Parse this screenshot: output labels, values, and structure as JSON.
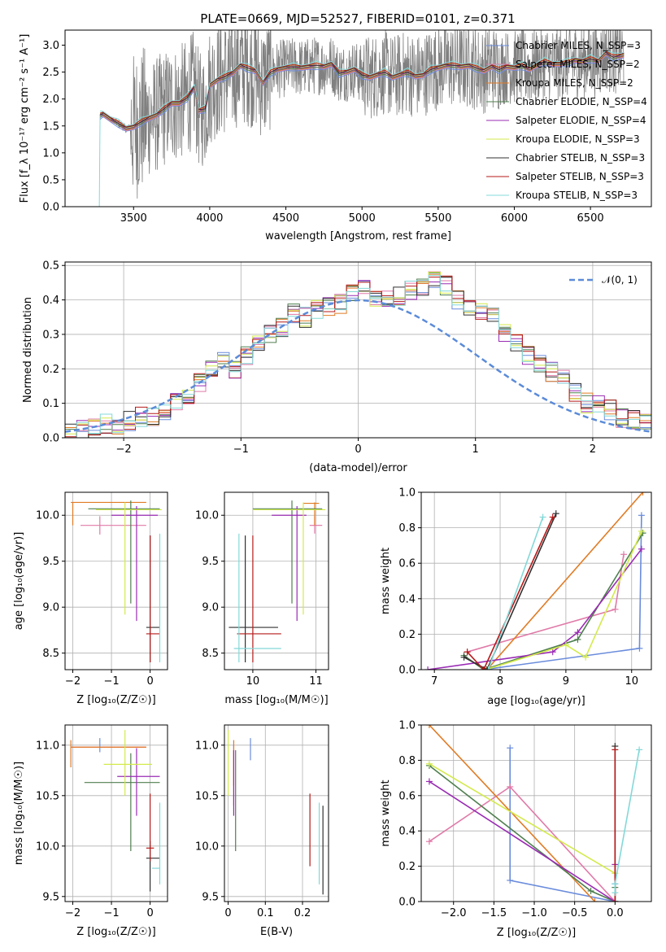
{
  "colors": {
    "chabrier_miles": "#6a8cdc",
    "salpeter_miles": "#e07aa8",
    "kroupa_miles": "#e07b24",
    "chabrier_elodie": "#4f7f4f",
    "salpeter_elodie": "#9a2bb4",
    "kroupa_elodie": "#d4ea4c",
    "chabrier_stelib": "#303030",
    "salpeter_stelib": "#b51a1a",
    "kroupa_stelib": "#84d8d8",
    "data": "#808080",
    "gauss": "#5b8bd8"
  },
  "chart_data": [
    {
      "id": "spectrum",
      "type": "line",
      "title": "PLATE=0669, MJD=52527, FIBERID=0101, z=0.371",
      "xlabel": "wavelength [Angstrom, rest frame]",
      "ylabel": "Flux [f_λ 10⁻¹⁷ erg cm⁻² s⁻¹ A⁻¹]",
      "xlim": [
        3050,
        6900
      ],
      "ylim": [
        0,
        3.28
      ],
      "xticks": [
        3500,
        4000,
        4500,
        5000,
        5500,
        6000,
        6500
      ],
      "yticks": [
        0.0,
        0.5,
        1.0,
        1.5,
        2.0,
        2.5,
        3.0
      ],
      "legend_position": "top-right",
      "model_points": {
        "x": [
          3280,
          3300,
          3350,
          3400,
          3450,
          3500,
          3550,
          3600,
          3650,
          3700,
          3750,
          3800,
          3850,
          3900,
          3930,
          3970,
          4000,
          4050,
          4100,
          4150,
          4200,
          4250,
          4300,
          4350,
          4400,
          4450,
          4500,
          4550,
          4600,
          4650,
          4700,
          4750,
          4800,
          4850,
          4900,
          4950,
          5000,
          5050,
          5100,
          5150,
          5200,
          5250,
          5300,
          5350,
          5400,
          5450,
          5500,
          5550,
          5600,
          5650,
          5700,
          5750,
          5800,
          5850,
          5900,
          5950,
          6000,
          6050,
          6100,
          6150,
          6200,
          6250,
          6300,
          6350,
          6400,
          6450,
          6500,
          6550,
          6600,
          6650,
          6700,
          6720
        ],
        "y": [
          1.7,
          1.72,
          1.62,
          1.55,
          1.45,
          1.48,
          1.58,
          1.64,
          1.7,
          1.82,
          1.92,
          1.92,
          2.02,
          2.22,
          1.78,
          1.82,
          2.25,
          2.35,
          2.42,
          2.48,
          2.62,
          2.58,
          2.52,
          2.3,
          2.5,
          2.55,
          2.58,
          2.6,
          2.58,
          2.6,
          2.63,
          2.6,
          2.65,
          2.48,
          2.5,
          2.55,
          2.45,
          2.4,
          2.45,
          2.5,
          2.4,
          2.45,
          2.5,
          2.42,
          2.44,
          2.55,
          2.58,
          2.62,
          2.63,
          2.6,
          2.62,
          2.58,
          2.52,
          2.6,
          2.55,
          2.6,
          2.58,
          2.62,
          2.55,
          2.63,
          2.7,
          2.65,
          2.65,
          2.68,
          2.72,
          2.7,
          2.75,
          2.7,
          2.85,
          2.78,
          2.8,
          2.82
        ]
      },
      "series": [
        {
          "name": "Chabrier MILES, N_SSP=3",
          "color": "#6a8cdc"
        },
        {
          "name": "Salpeter MILES, N_SSP=2",
          "color": "#e07aa8"
        },
        {
          "name": "Kroupa MILES, N_SSP=2",
          "color": "#e07b24"
        },
        {
          "name": "Chabrier ELODIE, N_SSP=4",
          "color": "#4f7f4f"
        },
        {
          "name": "Salpeter ELODIE, N_SSP=4",
          "color": "#9a2bb4"
        },
        {
          "name": "Kroupa ELODIE, N_SSP=3",
          "color": "#d4ea4c"
        },
        {
          "name": "Chabrier STELIB, N_SSP=3",
          "color": "#303030"
        },
        {
          "name": "Salpeter STELIB, N_SSP=3",
          "color": "#b51a1a"
        },
        {
          "name": "Kroupa STELIB, N_SSP=3",
          "color": "#84d8d8"
        }
      ]
    },
    {
      "id": "residuals",
      "type": "line",
      "xlabel": "(data-model)/error",
      "ylabel": "Normed distribution",
      "xlim": [
        -2.5,
        2.5
      ],
      "ylim": [
        0,
        0.51
      ],
      "xticks": [
        -2,
        -1,
        0,
        1,
        2
      ],
      "yticks": [
        0.0,
        0.1,
        0.2,
        0.3,
        0.4,
        0.5
      ],
      "legend": "𝒩(0, 1)",
      "legend_position": "top-right",
      "hist_bin_width": 0.1,
      "hist_bin_start": -2.5,
      "hist_base": [
        0.015,
        0.02,
        0.03,
        0.04,
        0.04,
        0.05,
        0.06,
        0.06,
        0.08,
        0.1,
        0.12,
        0.16,
        0.2,
        0.22,
        0.2,
        0.24,
        0.28,
        0.3,
        0.32,
        0.36,
        0.35,
        0.37,
        0.38,
        0.39,
        0.42,
        0.43,
        0.41,
        0.41,
        0.41,
        0.43,
        0.44,
        0.46,
        0.44,
        0.4,
        0.38,
        0.36,
        0.35,
        0.3,
        0.27,
        0.24,
        0.22,
        0.19,
        0.17,
        0.13,
        0.1,
        0.1,
        0.08,
        0.06,
        0.05,
        0.04,
        0.03
      ]
    },
    {
      "id": "age-vs-Z",
      "type": "scatter",
      "xlabel": "Z [log₁₀(Z/Z☉)]",
      "ylabel": "age [log₁₀(age/yr)]",
      "xlim": [
        -2.2,
        0.45
      ],
      "ylim": [
        8.32,
        10.25
      ],
      "xticks": [
        -2,
        -1,
        0
      ],
      "yticks": [
        8.5,
        9.0,
        9.5,
        10.0
      ],
      "errorbars": [
        {
          "color": "#6a8cdc",
          "x": -1.3,
          "y": 10.14,
          "xlo": -1.3,
          "xhi": -1.3,
          "ylo": 10.14,
          "yhi": 10.14
        },
        {
          "color": "#e07aa8",
          "x": -1.3,
          "y": 9.89,
          "xlo": -1.8,
          "xhi": -0.1,
          "ylo": 9.79,
          "yhi": 9.99
        },
        {
          "color": "#e07b24",
          "x": -2.0,
          "y": 10.14,
          "xlo": -2.05,
          "xhi": -0.1,
          "ylo": 9.89,
          "yhi": 10.14
        },
        {
          "color": "#4f7f4f",
          "x": -0.5,
          "y": 10.07,
          "xlo": -1.6,
          "xhi": 0.25,
          "ylo": 9.04,
          "yhi": 10.16
        },
        {
          "color": "#9a2bb4",
          "x": -0.35,
          "y": 10.0,
          "xlo": -1.0,
          "xhi": 0.2,
          "ylo": 8.85,
          "yhi": 10.1
        },
        {
          "color": "#d4ea4c",
          "x": -0.65,
          "y": 10.06,
          "xlo": -1.4,
          "xhi": 0.3,
          "ylo": 8.92,
          "yhi": 10.14
        },
        {
          "color": "#303030",
          "x": 0.0,
          "y": 8.78,
          "xlo": -0.1,
          "xhi": 0.25,
          "ylo": 8.4,
          "yhi": 9.78
        },
        {
          "color": "#b51a1a",
          "x": 0.0,
          "y": 8.71,
          "xlo": -0.1,
          "xhi": 0.25,
          "ylo": 8.4,
          "yhi": 9.78
        },
        {
          "color": "#84d8d8",
          "x": 0.25,
          "y": 8.55,
          "xlo": 0.25,
          "xhi": 0.25,
          "ylo": 8.4,
          "yhi": 9.8
        }
      ]
    },
    {
      "id": "age-vs-mass",
      "type": "scatter",
      "xlabel": "mass [log₁₀(M/M☉)]",
      "yticks": [
        8.5,
        9.0,
        9.5,
        10.0
      ],
      "xlim": [
        9.55,
        11.2
      ],
      "ylim": [
        8.32,
        10.25
      ],
      "xticks": [
        10,
        11
      ],
      "errorbars": [
        {
          "color": "#6a8cdc",
          "x": 11.0,
          "y": 10.13,
          "xlo": 11.0,
          "xhi": 11.0,
          "ylo": 10.13,
          "yhi": 10.13
        },
        {
          "color": "#e07aa8",
          "x": 10.98,
          "y": 9.89,
          "xlo": 10.9,
          "xhi": 11.1,
          "ylo": 9.8,
          "yhi": 9.99
        },
        {
          "color": "#e07b24",
          "x": 10.98,
          "y": 10.13,
          "xlo": 10.8,
          "xhi": 11.05,
          "ylo": 9.89,
          "yhi": 10.14
        },
        {
          "color": "#4f7f4f",
          "x": 10.62,
          "y": 10.07,
          "xlo": 10.0,
          "xhi": 11.1,
          "ylo": 9.04,
          "yhi": 10.16
        },
        {
          "color": "#9a2bb4",
          "x": 10.7,
          "y": 10.0,
          "xlo": 10.3,
          "xhi": 10.85,
          "ylo": 8.85,
          "yhi": 10.1
        },
        {
          "color": "#d4ea4c",
          "x": 10.8,
          "y": 10.06,
          "xlo": 10.0,
          "xhi": 11.15,
          "ylo": 8.92,
          "yhi": 10.14
        },
        {
          "color": "#303030",
          "x": 9.88,
          "y": 8.78,
          "xlo": 9.62,
          "xhi": 10.4,
          "ylo": 8.4,
          "yhi": 9.78
        },
        {
          "color": "#b51a1a",
          "x": 10.0,
          "y": 8.71,
          "xlo": 9.75,
          "xhi": 10.45,
          "ylo": 8.4,
          "yhi": 9.78
        },
        {
          "color": "#84d8d8",
          "x": 9.78,
          "y": 8.55,
          "xlo": 9.7,
          "xhi": 10.45,
          "ylo": 8.4,
          "yhi": 9.8
        }
      ]
    },
    {
      "id": "weight-vs-age",
      "type": "line",
      "xlabel": "age [log₁₀(age/yr)]",
      "ylabel": "mass weight",
      "xlim": [
        6.8,
        10.3
      ],
      "ylim": [
        0,
        1.0
      ],
      "xticks": [
        7,
        8,
        9,
        10
      ],
      "yticks": [
        0.0,
        0.2,
        0.4,
        0.6,
        0.8,
        1.0
      ],
      "series": [
        {
          "color": "#6a8cdc",
          "x": [
            7.75,
            10.12,
            10.15
          ],
          "y": [
            0.0,
            0.12,
            0.87
          ]
        },
        {
          "color": "#e07aa8",
          "x": [
            7.5,
            9.75,
            9.88
          ],
          "y": [
            0.1,
            0.34,
            0.65
          ]
        },
        {
          "color": "#e07b24",
          "x": [
            7.8,
            10.17
          ],
          "y": [
            0.0,
            1.0
          ]
        },
        {
          "color": "#4f7f4f",
          "x": [
            7.45,
            7.75,
            9.18,
            10.17
          ],
          "y": [
            0.08,
            0.0,
            0.17,
            0.77
          ]
        },
        {
          "color": "#9a2bb4",
          "x": [
            6.9,
            8.8,
            9.18,
            10.15
          ],
          "y": [
            0.0,
            0.1,
            0.21,
            0.68
          ]
        },
        {
          "color": "#d4ea4c",
          "x": [
            7.78,
            9.0,
            9.3,
            10.15
          ],
          "y": [
            0.0,
            0.14,
            0.07,
            0.78
          ]
        },
        {
          "color": "#303030",
          "x": [
            7.45,
            7.8,
            8.85
          ],
          "y": [
            0.07,
            0.0,
            0.88
          ]
        },
        {
          "color": "#b51a1a",
          "x": [
            7.5,
            7.75,
            8.8
          ],
          "y": [
            0.1,
            0.0,
            0.86
          ]
        },
        {
          "color": "#84d8d8",
          "x": [
            7.82,
            8.65
          ],
          "y": [
            0.0,
            0.86
          ]
        }
      ]
    },
    {
      "id": "mass-vs-Z",
      "type": "scatter",
      "xlabel": "Z [log₁₀(Z/Z☉)]",
      "ylabel": "mass [log₁₀(M/M☉)]",
      "xlim": [
        -2.2,
        0.45
      ],
      "ylim": [
        9.45,
        11.2
      ],
      "xticks": [
        -2,
        -1,
        0
      ],
      "yticks": [
        9.5,
        10.0,
        10.5,
        11.0
      ],
      "errorbars": [
        {
          "color": "#6a8cdc",
          "x": -1.3,
          "y": 11.0,
          "xlo": -1.3,
          "xhi": -1.3,
          "ylo": 10.93,
          "yhi": 11.07
        },
        {
          "color": "#e07aa8",
          "x": -1.3,
          "y": 10.98,
          "xlo": -2.05,
          "xhi": -0.1,
          "ylo": 10.98,
          "yhi": 10.98
        },
        {
          "color": "#e07b24",
          "x": -2.05,
          "y": 10.98,
          "xlo": -2.05,
          "xhi": -0.1,
          "ylo": 10.78,
          "yhi": 11.05
        },
        {
          "color": "#4f7f4f",
          "x": -0.5,
          "y": 10.63,
          "xlo": -1.7,
          "xhi": 0.25,
          "ylo": 9.95,
          "yhi": 10.92
        },
        {
          "color": "#9a2bb4",
          "x": -0.35,
          "y": 10.69,
          "xlo": -0.85,
          "xhi": 0.25,
          "ylo": 10.3,
          "yhi": 10.97
        },
        {
          "color": "#d4ea4c",
          "x": -0.65,
          "y": 10.81,
          "xlo": -1.2,
          "xhi": 0.05,
          "ylo": 10.5,
          "yhi": 11.15
        },
        {
          "color": "#303030",
          "x": 0.0,
          "y": 9.88,
          "xlo": -0.1,
          "xhi": 0.25,
          "ylo": 9.55,
          "yhi": 10.05
        },
        {
          "color": "#b51a1a",
          "x": 0.0,
          "y": 9.98,
          "xlo": -0.1,
          "xhi": 0.1,
          "ylo": 9.85,
          "yhi": 10.52
        },
        {
          "color": "#84d8d8",
          "x": 0.25,
          "y": 9.78,
          "xlo": 0.05,
          "xhi": 0.25,
          "ylo": 9.62,
          "yhi": 10.43
        }
      ]
    },
    {
      "id": "mass-vs-ebv",
      "type": "scatter",
      "xlabel": "E(B-V)",
      "xlim": [
        -0.01,
        0.27
      ],
      "ylim": [
        9.45,
        11.2
      ],
      "xticks": [
        0.0,
        0.1,
        0.2
      ],
      "yticks": [
        9.5,
        10.0,
        10.5,
        11.0
      ],
      "errorbars": [
        {
          "color": "#6a8cdc",
          "x": 0.06,
          "ylo": 10.85,
          "yhi": 11.07
        },
        {
          "color": "#e07aa8",
          "x": 0.015,
          "ylo": 10.4,
          "yhi": 11.0
        },
        {
          "color": "#e07b24",
          "x": 0.015,
          "ylo": 10.6,
          "yhi": 11.05
        },
        {
          "color": "#4f7f4f",
          "x": 0.02,
          "ylo": 9.95,
          "yhi": 10.95
        },
        {
          "color": "#9a2bb4",
          "x": 0.015,
          "ylo": 10.3,
          "yhi": 10.95
        },
        {
          "color": "#d4ea4c",
          "x": 0.0,
          "ylo": 10.5,
          "yhi": 11.15
        },
        {
          "color": "#303030",
          "x": 0.255,
          "ylo": 9.52,
          "yhi": 10.4
        },
        {
          "color": "#b51a1a",
          "x": 0.22,
          "ylo": 9.8,
          "yhi": 10.52
        },
        {
          "color": "#84d8d8",
          "x": 0.245,
          "ylo": 9.62,
          "yhi": 10.43
        }
      ]
    },
    {
      "id": "weight-vs-Z",
      "type": "line",
      "xlabel": "Z [log₁₀(Z/Z☉)]",
      "ylabel": "mass weight",
      "xlim": [
        -2.4,
        0.45
      ],
      "ylim": [
        0,
        1.0
      ],
      "xticks": [
        -2.0,
        -1.5,
        -1.0,
        -0.5,
        0.0
      ],
      "xticklabels": [
        "−2.0",
        "−1.5",
        "−1.0",
        "−0.5",
        "0.0"
      ],
      "yticks": [
        0.0,
        0.2,
        0.4,
        0.6,
        0.8,
        1.0
      ],
      "series": [
        {
          "color": "#6a8cdc",
          "x": [
            -1.3,
            -1.3,
            0.0,
            0.0
          ],
          "y": [
            0.87,
            0.12,
            0.0,
            0.1
          ]
        },
        {
          "color": "#e07aa8",
          "x": [
            -2.3,
            -1.3,
            0.0
          ],
          "y": [
            0.34,
            0.65,
            0.0
          ]
        },
        {
          "color": "#e07b24",
          "x": [
            -2.3,
            -0.25
          ],
          "y": [
            1.0,
            0.0
          ]
        },
        {
          "color": "#4f7f4f",
          "x": [
            -2.3,
            -0.3,
            0.0,
            0.0
          ],
          "y": [
            0.77,
            0.06,
            0.0,
            0.08
          ]
        },
        {
          "color": "#9a2bb4",
          "x": [
            -2.3,
            0.0,
            0.0
          ],
          "y": [
            0.68,
            0.0,
            0.21
          ]
        },
        {
          "color": "#d4ea4c",
          "x": [
            -2.3,
            0.0,
            0.0
          ],
          "y": [
            0.78,
            0.16,
            0.0
          ]
        },
        {
          "color": "#303030",
          "x": [
            0.0,
            0.0
          ],
          "y": [
            0.0,
            0.88
          ]
        },
        {
          "color": "#b51a1a",
          "x": [
            0.0,
            0.0
          ],
          "y": [
            0.0,
            0.86
          ]
        },
        {
          "color": "#84d8d8",
          "x": [
            0.0,
            0.0,
            0.3
          ],
          "y": [
            0.05,
            0.1,
            0.86
          ]
        }
      ]
    }
  ]
}
